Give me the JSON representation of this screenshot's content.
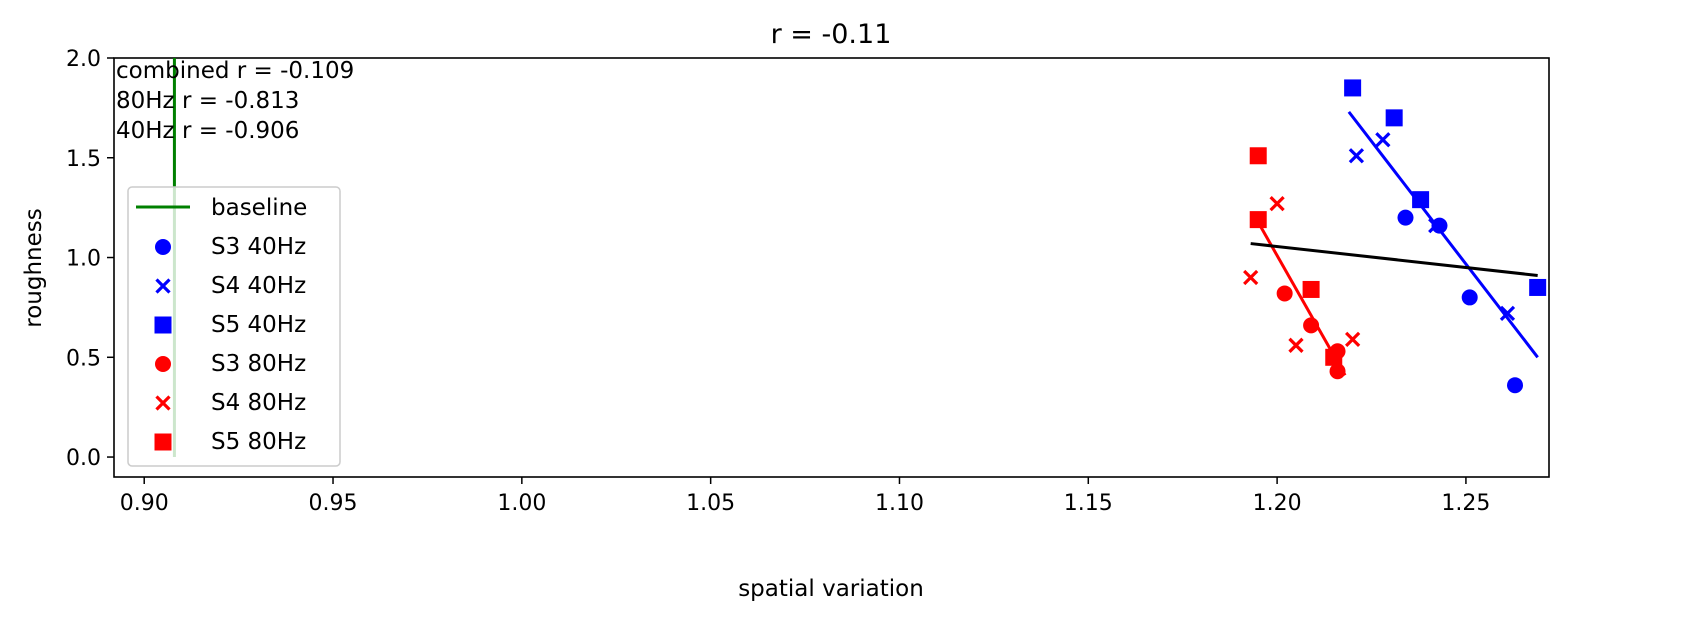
{
  "chart_data": {
    "type": "scatter",
    "title": "r = -0.11",
    "xlabel": "spatial variation",
    "ylabel": "roughness",
    "xlim": [
      0.892,
      1.272
    ],
    "ylim": [
      -0.1,
      2.0
    ],
    "xticks": [
      "0.90",
      "0.95",
      "1.00",
      "1.05",
      "1.10",
      "1.15",
      "1.20",
      "1.25"
    ],
    "xtick_values": [
      0.9,
      0.95,
      1.0,
      1.05,
      1.1,
      1.15,
      1.2,
      1.25
    ],
    "yticks": [
      "0.0",
      "0.5",
      "1.0",
      "1.5",
      "2.0"
    ],
    "ytick_values": [
      0.0,
      0.5,
      1.0,
      1.5,
      2.0
    ],
    "grid": false,
    "legend_position": "lower-left",
    "annotations": [
      "combined r = -0.109",
      "80Hz r = -0.813",
      "40Hz r = -0.906"
    ],
    "baseline": {
      "name": "baseline",
      "color": "#008000",
      "x": 0.908,
      "y": [
        0.0,
        2.0
      ]
    },
    "series": [
      {
        "name": "S3 40Hz",
        "marker": "circle",
        "color": "#0000ff",
        "points": [
          [
            1.234,
            1.2
          ],
          [
            1.243,
            1.16
          ],
          [
            1.251,
            0.8
          ],
          [
            1.263,
            0.36
          ]
        ]
      },
      {
        "name": "S4 40Hz",
        "marker": "x",
        "color": "#0000ff",
        "points": [
          [
            1.221,
            1.51
          ],
          [
            1.228,
            1.59
          ],
          [
            1.242,
            1.16
          ],
          [
            1.261,
            0.72
          ]
        ]
      },
      {
        "name": "S5 40Hz",
        "marker": "square",
        "color": "#0000ff",
        "points": [
          [
            1.22,
            1.85
          ],
          [
            1.231,
            1.7
          ],
          [
            1.238,
            1.29
          ],
          [
            1.269,
            0.85
          ]
        ]
      },
      {
        "name": "S3 80Hz",
        "marker": "circle",
        "color": "#ff0000",
        "points": [
          [
            1.202,
            0.82
          ],
          [
            1.209,
            0.66
          ],
          [
            1.216,
            0.53
          ],
          [
            1.216,
            0.43
          ]
        ]
      },
      {
        "name": "S4 80Hz",
        "marker": "x",
        "color": "#ff0000",
        "points": [
          [
            1.193,
            0.9
          ],
          [
            1.2,
            1.27
          ],
          [
            1.205,
            0.56
          ],
          [
            1.22,
            0.59
          ]
        ]
      },
      {
        "name": "S5 80Hz",
        "marker": "square",
        "color": "#ff0000",
        "points": [
          [
            1.195,
            1.51
          ],
          [
            1.195,
            1.19
          ],
          [
            1.209,
            0.84
          ],
          [
            1.215,
            0.5
          ]
        ]
      }
    ],
    "fit_lines": [
      {
        "color": "#0000ff",
        "x": [
          1.219,
          1.269
        ],
        "y": [
          1.73,
          0.5
        ]
      },
      {
        "color": "#ff0000",
        "x": [
          1.194,
          1.218
        ],
        "y": [
          1.21,
          0.41
        ]
      },
      {
        "color": "#000000",
        "x": [
          1.193,
          1.269
        ],
        "y": [
          1.07,
          0.91
        ]
      }
    ]
  }
}
